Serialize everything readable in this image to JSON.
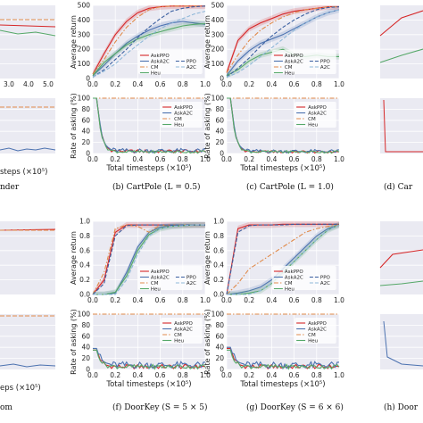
{
  "legend_labels": [
    "AskPPO",
    "AskA2C",
    "CM",
    "Heu"
  ],
  "legend_extra": [
    "PPO",
    "A2C"
  ],
  "colors": {
    "AskPPO": "#d62728",
    "AskA2C": "#4c72b0",
    "CM": "#e08a4a",
    "Heu": "#55a868",
    "PPO": "#3a5fa0",
    "A2C": "#8fb8d9",
    "plotbg": "#eaeaf2"
  },
  "captions": {
    "a": "nder",
    "b": "(b) CartPole (L = 0.5)",
    "c": "(c) CartPole (L = 1.0)",
    "d": "(d) Car",
    "e": "om",
    "f": "(f) DoorKey (S = 5 × 5)",
    "g": "(g) DoorKey (S = 6 × 6)",
    "h": "(h) Door"
  },
  "chart_data": [
    {
      "panel": "b-top",
      "type": "line",
      "ylabel": "Average return",
      "xlabel": "",
      "xlim": [
        0,
        1.0
      ],
      "ylim": [
        0,
        500
      ],
      "xticks": [
        "0.0",
        "0.2",
        "0.4",
        "0.6",
        "0.8",
        "1.0"
      ],
      "yticks": [
        "0",
        "100",
        "200",
        "300",
        "400",
        "500"
      ],
      "x": [
        0,
        0.1,
        0.2,
        0.3,
        0.4,
        0.5,
        0.6,
        0.7,
        0.8,
        0.9,
        1.0
      ],
      "series": [
        {
          "name": "AskPPO",
          "values": [
            30,
            170,
            300,
            390,
            450,
            480,
            490,
            495,
            495,
            495,
            495
          ]
        },
        {
          "name": "AskA2C",
          "values": [
            20,
            90,
            170,
            240,
            290,
            330,
            360,
            380,
            390,
            380,
            370
          ]
        },
        {
          "name": "CM",
          "values": [
            30,
            130,
            250,
            350,
            420,
            470,
            490,
            495,
            495,
            495,
            495
          ]
        },
        {
          "name": "Heu",
          "values": [
            20,
            110,
            170,
            230,
            270,
            300,
            320,
            340,
            360,
            370,
            375
          ]
        },
        {
          "name": "PPO",
          "values": [
            10,
            60,
            130,
            200,
            280,
            350,
            410,
            460,
            480,
            490,
            495
          ]
        },
        {
          "name": "A2C",
          "values": [
            10,
            50,
            100,
            170,
            230,
            290,
            340,
            380,
            410,
            440,
            460
          ]
        }
      ]
    },
    {
      "panel": "b-bottom",
      "type": "line",
      "ylabel": "Rate of asking (%)",
      "xlabel": "Total timesteps (×10⁵)",
      "xlim": [
        0,
        1.0
      ],
      "ylim": [
        0,
        100
      ],
      "xticks": [
        "0.0",
        "0.2",
        "0.4",
        "0.6",
        "0.8",
        "1.0"
      ],
      "yticks": [
        "0",
        "20",
        "40",
        "60",
        "80",
        "100"
      ],
      "series": [
        {
          "name": "AskPPO",
          "values": [
            100,
            4
          ]
        },
        {
          "name": "AskA2C",
          "values": [
            100,
            5
          ]
        },
        {
          "name": "CM",
          "values": [
            100,
            100
          ]
        },
        {
          "name": "Heu",
          "values": [
            100,
            3
          ]
        }
      ]
    },
    {
      "panel": "c-top",
      "type": "line",
      "ylabel": "Average return",
      "xlabel": "",
      "xlim": [
        0,
        1.0
      ],
      "ylim": [
        0,
        500
      ],
      "xticks": [
        "0.0",
        "0.2",
        "0.4",
        "0.6",
        "0.8",
        "1.0"
      ],
      "yticks": [
        "0",
        "100",
        "200",
        "300",
        "400",
        "500"
      ],
      "x": [
        0,
        0.1,
        0.2,
        0.3,
        0.4,
        0.5,
        0.6,
        0.7,
        0.8,
        0.9,
        1.0
      ],
      "series": [
        {
          "name": "AskPPO",
          "values": [
            40,
            260,
            340,
            380,
            410,
            440,
            460,
            470,
            480,
            490,
            490
          ]
        },
        {
          "name": "AskA2C",
          "values": [
            20,
            120,
            190,
            240,
            270,
            300,
            340,
            380,
            420,
            450,
            470
          ]
        },
        {
          "name": "CM",
          "values": [
            40,
            160,
            260,
            330,
            380,
            420,
            450,
            470,
            480,
            490,
            490
          ]
        },
        {
          "name": "Heu",
          "values": [
            20,
            60,
            120,
            160,
            180,
            200,
            160,
            150,
            160,
            150,
            150
          ]
        },
        {
          "name": "PPO",
          "values": [
            10,
            70,
            140,
            220,
            290,
            350,
            400,
            440,
            470,
            485,
            490
          ]
        },
        {
          "name": "A2C",
          "values": [
            10,
            40,
            90,
            150,
            210,
            270,
            330,
            380,
            420,
            450,
            470
          ]
        }
      ]
    },
    {
      "panel": "c-bottom",
      "type": "line",
      "ylabel": "Rate of asking (%)",
      "xlabel": "Total timesteps (×10⁵)",
      "xlim": [
        0,
        1.0
      ],
      "ylim": [
        0,
        100
      ],
      "xticks": [
        "0.0",
        "0.2",
        "0.4",
        "0.6",
        "0.8",
        "1.0"
      ],
      "yticks": [
        "0",
        "20",
        "40",
        "60",
        "80",
        "100"
      ],
      "series": [
        {
          "name": "AskPPO",
          "values": [
            100,
            3
          ]
        },
        {
          "name": "AskA2C",
          "values": [
            100,
            4
          ]
        },
        {
          "name": "CM",
          "values": [
            100,
            100
          ]
        },
        {
          "name": "Heu",
          "values": [
            100,
            3
          ]
        }
      ]
    },
    {
      "panel": "f-top",
      "type": "line",
      "ylabel": "Average return",
      "xlabel": "",
      "xlim": [
        0,
        1.0
      ],
      "ylim": [
        0,
        1.0
      ],
      "xticks": [
        "0.0",
        "0.2",
        "0.4",
        "0.6",
        "0.8",
        "1.0"
      ],
      "yticks": [
        "0.0",
        "0.2",
        "0.4",
        "0.6",
        "0.8",
        "1.0"
      ],
      "x": [
        0,
        0.1,
        0.2,
        0.3,
        0.4,
        0.5,
        0.6,
        0.7,
        0.8,
        0.9,
        1.0
      ],
      "series": [
        {
          "name": "AskPPO",
          "values": [
            0.0,
            0.2,
            0.85,
            0.95,
            0.95,
            0.95,
            0.95,
            0.95,
            0.95,
            0.95,
            0.95
          ]
        },
        {
          "name": "AskA2C",
          "values": [
            0.0,
            0.0,
            0.02,
            0.3,
            0.65,
            0.85,
            0.92,
            0.94,
            0.95,
            0.95,
            0.95
          ]
        },
        {
          "name": "CM",
          "values": [
            0.0,
            0.3,
            0.9,
            0.95,
            0.93,
            0.85,
            0.95,
            0.93,
            0.95,
            0.95,
            0.95
          ]
        },
        {
          "name": "Heu",
          "values": [
            0.0,
            0.0,
            0.03,
            0.25,
            0.6,
            0.82,
            0.9,
            0.93,
            0.94,
            0.95,
            0.95
          ]
        },
        {
          "name": "PPO",
          "values": [
            0.0,
            0.15,
            0.8,
            0.94,
            0.95,
            0.95,
            0.95,
            0.95,
            0.95,
            0.95,
            0.95
          ]
        },
        {
          "name": "A2C",
          "values": [
            0.0,
            0.0,
            0.0,
            0.2,
            0.55,
            0.8,
            0.9,
            0.93,
            0.94,
            0.95,
            0.95
          ]
        }
      ]
    },
    {
      "panel": "f-bottom",
      "type": "line",
      "ylabel": "Rate of asking (%)",
      "xlabel": "Total timesteps (×10⁵)",
      "xlim": [
        0,
        1.0
      ],
      "ylim": [
        0,
        100
      ],
      "xticks": [
        "0.0",
        "0.2",
        "0.4",
        "0.6",
        "0.8",
        "1.0"
      ],
      "yticks": [
        "0",
        "20",
        "40",
        "60",
        "80",
        "100"
      ],
      "series": [
        {
          "name": "AskPPO",
          "values": [
            35,
            5
          ]
        },
        {
          "name": "AskA2C",
          "values": [
            38,
            8
          ]
        },
        {
          "name": "CM",
          "values": [
            100,
            100
          ]
        },
        {
          "name": "Heu",
          "values": [
            35,
            5
          ]
        }
      ]
    },
    {
      "panel": "g-top",
      "type": "line",
      "ylabel": "Average return",
      "xlabel": "",
      "xlim": [
        0,
        1.0
      ],
      "ylim": [
        0,
        1.0
      ],
      "xticks": [
        "0.0",
        "0.2",
        "0.4",
        "0.6",
        "0.8",
        "1.0"
      ],
      "yticks": [
        "0.0",
        "0.2",
        "0.4",
        "0.6",
        "0.8",
        "1.0"
      ],
      "x": [
        0,
        0.1,
        0.2,
        0.3,
        0.4,
        0.5,
        0.6,
        0.7,
        0.8,
        0.9,
        1.0
      ],
      "series": [
        {
          "name": "AskPPO",
          "values": [
            0.0,
            0.9,
            0.95,
            0.95,
            0.95,
            0.96,
            0.96,
            0.96,
            0.96,
            0.96,
            0.96
          ]
        },
        {
          "name": "AskA2C",
          "values": [
            0.0,
            0.02,
            0.05,
            0.1,
            0.2,
            0.35,
            0.5,
            0.65,
            0.8,
            0.9,
            0.95
          ]
        },
        {
          "name": "CM",
          "values": [
            0.0,
            0.15,
            0.35,
            0.45,
            0.55,
            0.65,
            0.75,
            0.85,
            0.9,
            0.93,
            0.95
          ]
        },
        {
          "name": "Heu",
          "values": [
            0.0,
            0.0,
            0.02,
            0.05,
            0.15,
            0.3,
            0.45,
            0.6,
            0.75,
            0.88,
            0.95
          ]
        },
        {
          "name": "PPO",
          "values": [
            0.0,
            0.85,
            0.94,
            0.95,
            0.95,
            0.95,
            0.96,
            0.96,
            0.96,
            0.96,
            0.96
          ]
        },
        {
          "name": "A2C",
          "values": [
            0.0,
            0.0,
            0.0,
            0.05,
            0.15,
            0.3,
            0.45,
            0.6,
            0.75,
            0.88,
            0.95
          ]
        }
      ]
    },
    {
      "panel": "g-bottom",
      "type": "line",
      "ylabel": "Rate of asking (%)",
      "xlabel": "Total timesteps (×10⁵)",
      "xlim": [
        0,
        1.0
      ],
      "ylim": [
        0,
        100
      ],
      "xticks": [
        "0.0",
        "0.2",
        "0.4",
        "0.6",
        "0.8",
        "1.0"
      ],
      "yticks": [
        "0",
        "20",
        "40",
        "60",
        "80",
        "100"
      ],
      "series": [
        {
          "name": "AskPPO",
          "values": [
            38,
            5
          ]
        },
        {
          "name": "AskA2C",
          "values": [
            40,
            8
          ]
        },
        {
          "name": "CM",
          "values": [
            100,
            100
          ]
        },
        {
          "name": "Heu",
          "values": [
            35,
            5
          ]
        }
      ]
    }
  ],
  "fragments": {
    "a_xticks": [
      "3.0",
      "4.0",
      "5.0"
    ],
    "a_xlabel": "steps (×10⁵)",
    "e_xlabel": "eps (×10⁵)"
  }
}
